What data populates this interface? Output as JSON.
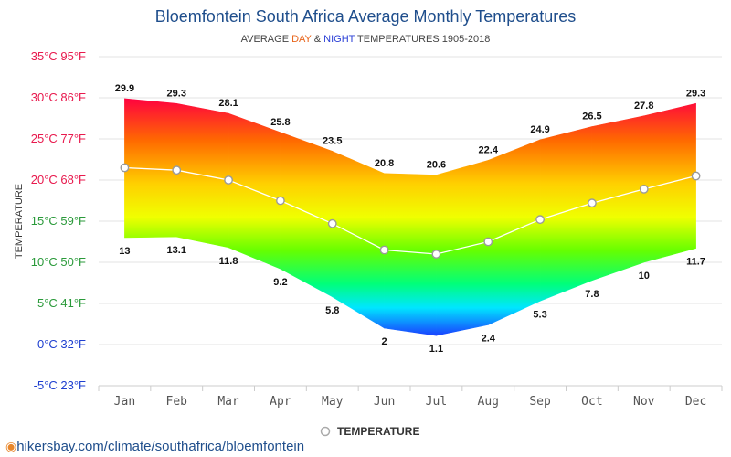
{
  "title": "Bloemfontein South Africa Average Monthly Temperatures",
  "subtitle": {
    "part1": "AVERAGE ",
    "day": "DAY",
    "amp": " & ",
    "night": "NIGHT",
    "part2": " TEMPERATURES 1905-2018",
    "day_color": "#e8641a",
    "night_color": "#2a3fd6"
  },
  "footer": {
    "url": "hikersbay.com/climate/southafrica/bloemfontein",
    "icon": "map-pin-icon"
  },
  "chart_data": {
    "type": "area",
    "title": "Bloemfontein South Africa Average Monthly Temperatures",
    "ylabel": "TEMPERATURE",
    "categories": [
      "Jan",
      "Feb",
      "Mar",
      "Apr",
      "May",
      "Jun",
      "Jul",
      "Aug",
      "Sep",
      "Oct",
      "Nov",
      "Dec"
    ],
    "ylim": [
      -5,
      35
    ],
    "yticks": [
      {
        "value": 35,
        "label": "35°C 95°F",
        "color": "#e8194d"
      },
      {
        "value": 30,
        "label": "30°C 86°F",
        "color": "#e8194d"
      },
      {
        "value": 25,
        "label": "25°C 77°F",
        "color": "#e8194d"
      },
      {
        "value": 20,
        "label": "20°C 68°F",
        "color": "#e8194d"
      },
      {
        "value": 15,
        "label": "15°C 59°F",
        "color": "#2a9a3a"
      },
      {
        "value": 10,
        "label": "10°C 50°F",
        "color": "#2a9a3a"
      },
      {
        "value": 5,
        "label": "5°C 41°F",
        "color": "#2a9a3a"
      },
      {
        "value": 0,
        "label": "0°C 32°F",
        "color": "#1e3fd0"
      },
      {
        "value": -5,
        "label": "-5°C 23°F",
        "color": "#1e3fd0"
      }
    ],
    "series": [
      {
        "values": [
          29.9,
          29.3,
          28.1,
          25.8,
          23.5,
          20.8,
          20.6,
          22.4,
          24.9,
          26.5,
          27.8,
          29.3
        ]
      },
      {
        "values": [
          13,
          13.1,
          11.8,
          9.2,
          5.8,
          2,
          1.1,
          2.4,
          5.3,
          7.8,
          10,
          11.7
        ]
      },
      {
        "name": "TEMPERATURE",
        "values": [
          21.5,
          21.2,
          20.0,
          17.5,
          14.7,
          11.5,
          11.0,
          12.5,
          15.2,
          17.2,
          18.9,
          20.5
        ]
      }
    ],
    "grid": true,
    "legend_position": "bottom-center"
  }
}
